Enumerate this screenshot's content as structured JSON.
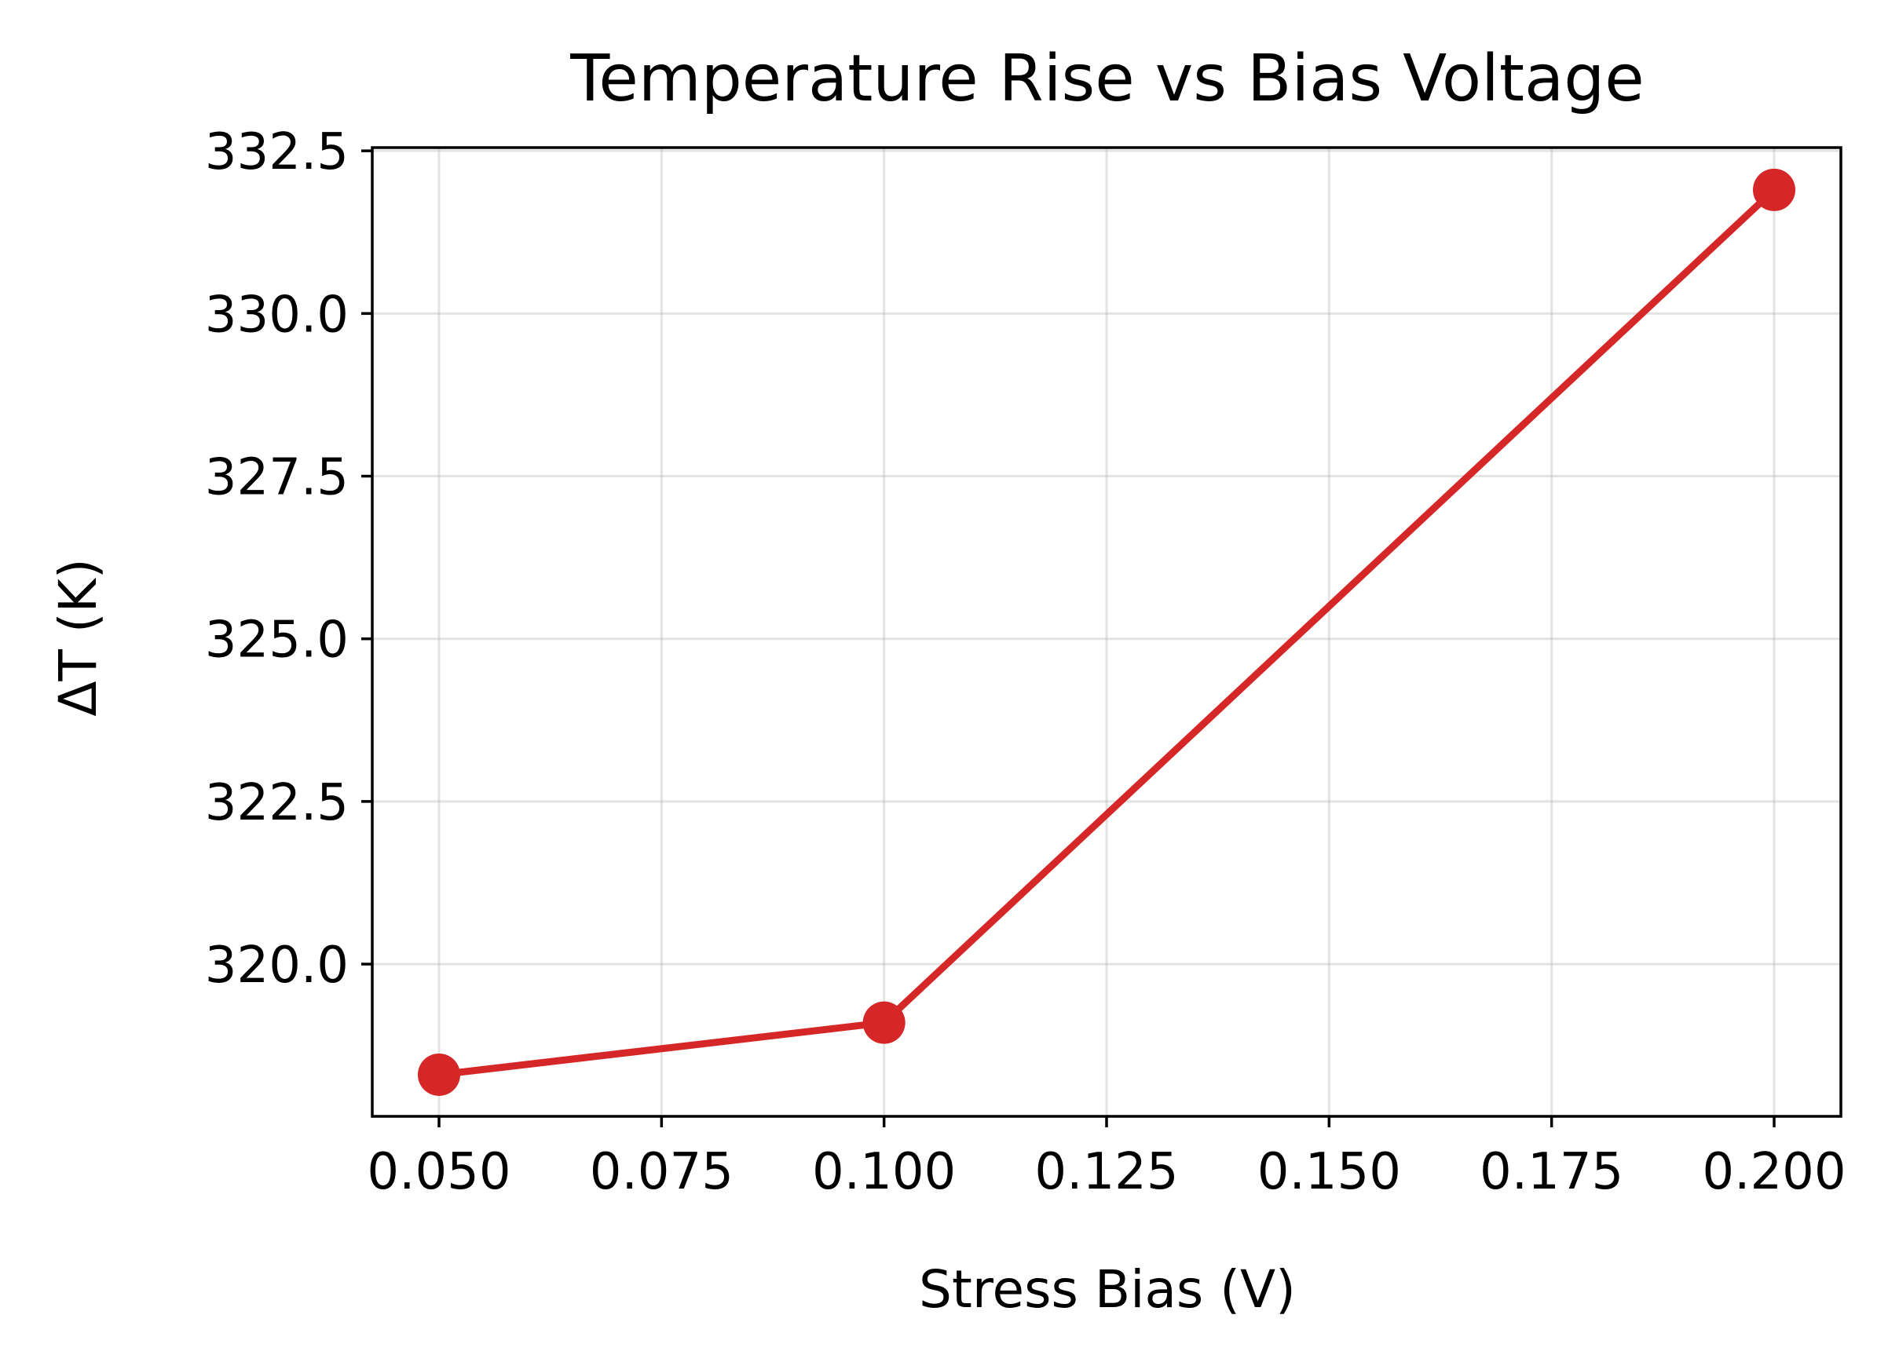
{
  "chart_data": {
    "type": "line",
    "title": "Temperature Rise vs Bias Voltage",
    "xlabel": "Stress Bias (V)",
    "ylabel": "ΔT (K)",
    "x": [
      0.05,
      0.1,
      0.2
    ],
    "series": [
      {
        "values": [
          318.3,
          319.1,
          331.9
        ],
        "color": "#d62728",
        "marker": "circle"
      }
    ],
    "xlim": [
      0.0425,
      0.2075
    ],
    "ylim": [
      317.66,
      332.55
    ],
    "xticks": [
      0.05,
      0.075,
      0.1,
      0.125,
      0.15,
      0.175,
      0.2
    ],
    "xtick_labels": [
      "0.050",
      "0.075",
      "0.100",
      "0.125",
      "0.150",
      "0.175",
      "0.200"
    ],
    "yticks": [
      320.0,
      322.5,
      325.0,
      327.5,
      330.0,
      332.5
    ],
    "ytick_labels": [
      "320.0",
      "322.5",
      "325.0",
      "327.5",
      "330.0",
      "332.5"
    ],
    "grid": true,
    "legend": "none"
  }
}
